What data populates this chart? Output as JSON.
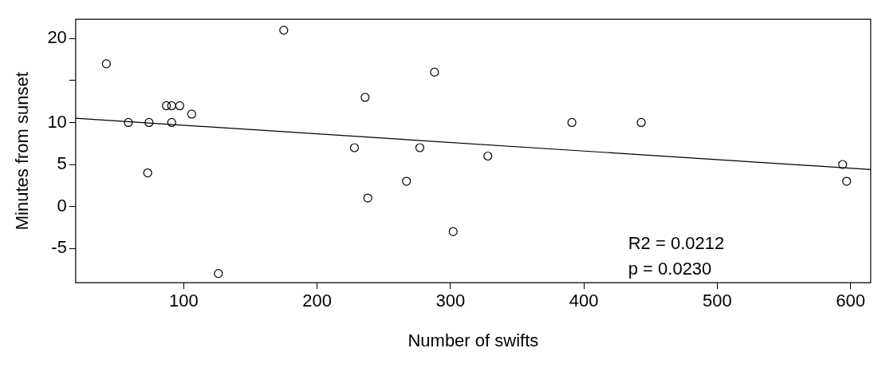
{
  "chart_data": {
    "type": "scatter",
    "xlabel": "Number of swifts",
    "ylabel": "Minutes from sunset",
    "marker": "circle",
    "xlim": [
      19,
      615
    ],
    "xticks": [
      100,
      200,
      300,
      400,
      500,
      600
    ],
    "ylim": [
      -9.1,
      22.3
    ],
    "yticks": [
      -5,
      0,
      5,
      10,
      {
        "value": 15,
        "label": null
      },
      20
    ],
    "annotations": [
      "R2 = 0.0212",
      "p = 0.0230"
    ],
    "series": [
      {
        "type": "scatter",
        "color": "#000000",
        "x": [
          42,
          58.5,
          74,
          73,
          87,
          91,
          97,
          91,
          106,
          126,
          175,
          228,
          236,
          238,
          267,
          277,
          288,
          302,
          328,
          391,
          443,
          594,
          597
        ],
        "values": [
          17,
          10,
          10,
          4,
          12,
          12,
          12,
          10,
          11,
          -8,
          21,
          7,
          13,
          1,
          3,
          7,
          16,
          -3,
          6,
          10,
          10,
          5,
          3
        ]
      },
      {
        "type": "line",
        "marker": "none",
        "color": "#000000",
        "x": [
          19,
          615
        ],
        "values": [
          10.5,
          4.4
        ]
      }
    ]
  }
}
